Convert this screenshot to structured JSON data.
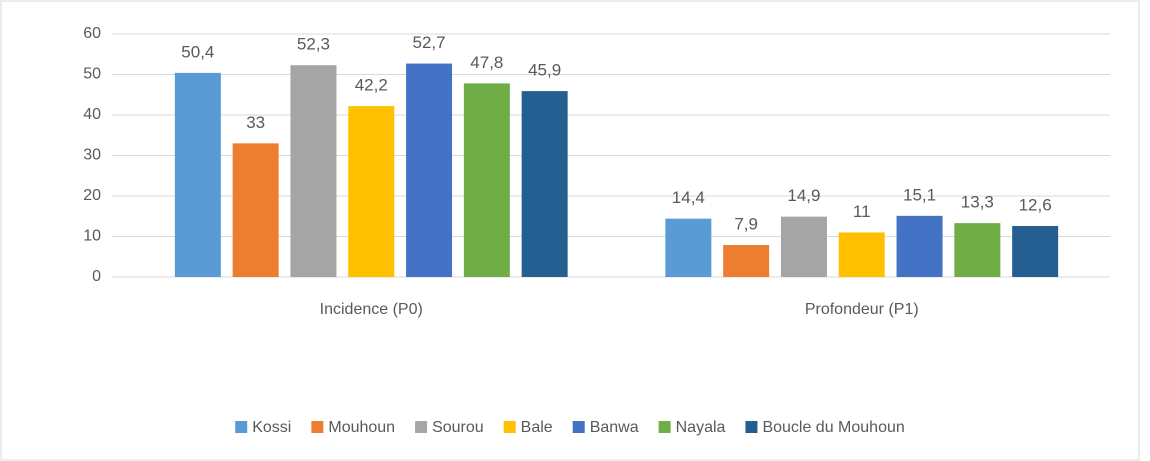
{
  "chart_data": {
    "type": "bar",
    "categories": [
      "Incidence (P0)",
      "Profondeur (P1)"
    ],
    "series": [
      {
        "name": "Kossi",
        "color": "#5b9bd5",
        "values": [
          50.4,
          14.4
        ],
        "value_labels": [
          "50,4",
          "14,4"
        ]
      },
      {
        "name": "Mouhoun",
        "color": "#ed7d31",
        "values": [
          33,
          7.9
        ],
        "value_labels": [
          "33",
          "7,9"
        ]
      },
      {
        "name": "Sourou",
        "color": "#a5a5a5",
        "values": [
          52.3,
          14.9
        ],
        "value_labels": [
          "52,3",
          "14,9"
        ]
      },
      {
        "name": "Bale",
        "color": "#ffc000",
        "values": [
          42.2,
          11
        ],
        "value_labels": [
          "42,2",
          "11"
        ]
      },
      {
        "name": "Banwa",
        "color": "#4472c4",
        "values": [
          52.7,
          15.1
        ],
        "value_labels": [
          "52,7",
          "15,1"
        ]
      },
      {
        "name": "Nayala",
        "color": "#70ad47",
        "values": [
          47.8,
          13.3
        ],
        "value_labels": [
          "47,8",
          "13,3"
        ]
      },
      {
        "name": "Boucle du Mouhoun",
        "color": "#255e91",
        "values": [
          45.9,
          12.6
        ],
        "value_labels": [
          "45,9",
          "12,6"
        ]
      }
    ],
    "ylim": [
      0,
      60
    ],
    "yticks": [
      0,
      10,
      20,
      30,
      40,
      50,
      60
    ],
    "grid": true,
    "legend": "bottom"
  }
}
